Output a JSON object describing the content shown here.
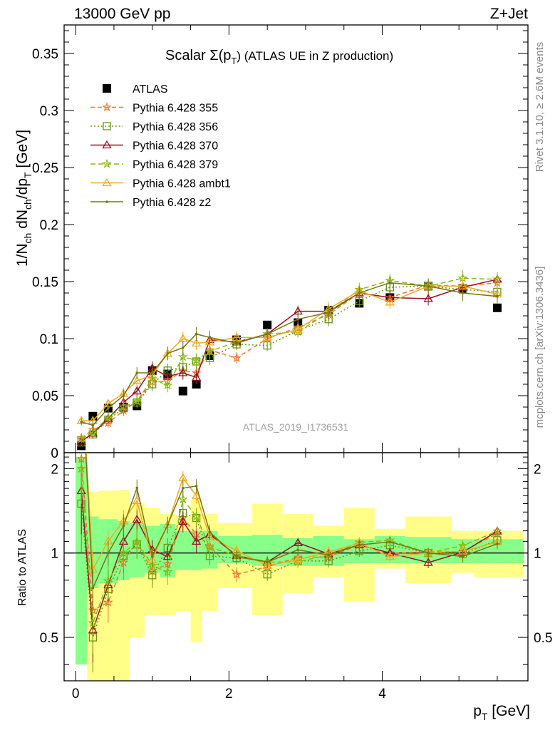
{
  "header": {
    "left": "13000 GeV pp",
    "right": "Z+Jet"
  },
  "side": {
    "rivet": "Rivet 3.1.10, ≥ 2.6M events",
    "mcplots": "mcplots.cern.ch [arXiv:1306.3436]"
  },
  "chart_data": [
    {
      "type": "line",
      "title_main": "Scalar Σ(p",
      "title_sub": "T",
      "title_tail": ") (ATLAS UE in Z production)",
      "ylabel_main": "1/N",
      "ylabel_sub1": "ch",
      "ylabel_mid": " dN",
      "ylabel_sub2": "ch",
      "ylabel_tail": "/dp",
      "ylabel_sub3": "T",
      "ylabel_unit": " [GeV]",
      "watermark": "ATLAS_2019_I1736531",
      "xlim": [
        -0.15,
        5.9
      ],
      "ylim": [
        0,
        0.375
      ],
      "yticks": [
        {
          "v": 0,
          "label": "0"
        },
        {
          "v": 0.05,
          "label": "0.05"
        },
        {
          "v": 0.1,
          "label": "0.1"
        },
        {
          "v": 0.15,
          "label": "0.15"
        },
        {
          "v": 0.2,
          "label": "0.2"
        },
        {
          "v": 0.25,
          "label": "0.25"
        },
        {
          "v": 0.3,
          "label": "0.3"
        },
        {
          "v": 0.35,
          "label": "0.35"
        }
      ],
      "x": [
        0.075,
        0.225,
        0.425,
        0.625,
        0.8,
        1.0,
        1.2,
        1.4,
        1.575,
        1.75,
        2.1,
        2.5,
        2.9,
        3.3,
        3.7,
        4.1,
        4.6,
        5.05,
        5.5
      ],
      "series": [
        {
          "name": "ATLAS",
          "color": "#000000",
          "marker": "square",
          "dash": "none",
          "values": [
            0.006,
            0.032,
            0.039,
            0.04,
            0.041,
            0.072,
            0.069,
            0.054,
            0.06,
            0.085,
            0.099,
            0.112,
            0.114,
            0.125,
            0.131,
            0.136,
            0.146,
            0.144,
            0.127
          ]
        },
        {
          "name": "Pythia 6.428 355",
          "color": "#ee7733",
          "marker": "star",
          "dash": "6,4",
          "values": [
            0.013,
            0.02,
            0.026,
            0.037,
            0.045,
            0.062,
            0.063,
            0.072,
            0.07,
            0.09,
            0.083,
            0.1,
            0.11,
            0.121,
            0.14,
            0.136,
            0.147,
            0.146,
            0.149
          ]
        },
        {
          "name": "Pythia 6.428 356",
          "color": "#669911",
          "marker": "open-square",
          "dash": "2,3",
          "values": [
            0.009,
            0.016,
            0.029,
            0.039,
            0.044,
            0.06,
            0.072,
            0.075,
            0.08,
            0.083,
            0.095,
            0.094,
            0.107,
            0.117,
            0.133,
            0.145,
            0.146,
            0.143,
            0.141
          ]
        },
        {
          "name": "Pythia 6.428 370",
          "color": "#991122",
          "marker": "open-triangle",
          "dash": "none",
          "values": [
            0.01,
            0.017,
            0.03,
            0.044,
            0.054,
            0.074,
            0.067,
            0.07,
            0.066,
            0.099,
            0.097,
            0.104,
            0.124,
            0.124,
            0.14,
            0.136,
            0.135,
            0.145,
            0.152
          ]
        },
        {
          "name": "Pythia 6.428 379",
          "color": "#88bb11",
          "marker": "star",
          "dash": "7,4",
          "values": [
            0.012,
            0.018,
            0.031,
            0.04,
            0.045,
            0.065,
            0.059,
            0.084,
            0.081,
            0.089,
            0.097,
            0.104,
            0.106,
            0.123,
            0.143,
            0.151,
            0.146,
            0.153,
            0.152
          ]
        },
        {
          "name": "Pythia 6.428 ambt1",
          "color": "#eeaa22",
          "marker": "open-triangle",
          "dash": "none",
          "values": [
            0.028,
            0.028,
            0.043,
            0.052,
            0.063,
            0.068,
            0.087,
            0.1,
            0.096,
            0.097,
            0.101,
            0.101,
            0.108,
            0.126,
            0.142,
            0.132,
            0.146,
            0.146,
            0.139
          ]
        },
        {
          "name": "Pythia 6.428 z2",
          "color": "#777711",
          "marker": "dot",
          "dash": "none",
          "values": [
            0.027,
            0.024,
            0.039,
            0.05,
            0.07,
            0.07,
            0.087,
            0.092,
            0.104,
            0.101,
            0.096,
            0.104,
            0.117,
            0.123,
            0.14,
            0.149,
            0.146,
            0.14,
            0.137
          ]
        }
      ],
      "errors": [
        0.003,
        0.004,
        0.004,
        0.005,
        0.005,
        0.006,
        0.006,
        0.006,
        0.006,
        0.006,
        0.005,
        0.005,
        0.005,
        0.006,
        0.006,
        0.006,
        0.006,
        0.007,
        0.006
      ]
    },
    {
      "type": "line",
      "ylabel": "Ratio to ATLAS",
      "xlabel_main": "p",
      "xlabel_sub": "T",
      "xlabel_unit": " [GeV]",
      "ylim": [
        0.35,
        2.28
      ],
      "yticks": [
        {
          "v": 0.5,
          "label": "0.5"
        },
        {
          "v": 1,
          "label": "1"
        },
        {
          "v": 2,
          "label": "2"
        }
      ],
      "xticks": [
        {
          "v": 0,
          "label": "0"
        },
        {
          "v": 2,
          "label": "2"
        },
        {
          "v": 4,
          "label": "4"
        }
      ],
      "bin_edges": [
        0.0,
        0.15,
        0.3,
        0.55,
        0.7,
        0.9,
        1.1,
        1.3,
        1.5,
        1.65,
        1.85,
        2.3,
        2.7,
        3.1,
        3.5,
        3.9,
        4.3,
        4.9,
        5.2,
        5.85
      ],
      "band_inner": [
        [
          0.4,
          2.2
        ],
        [
          0.75,
          1.35
        ],
        [
          0.78,
          1.32
        ],
        [
          0.8,
          1.3
        ],
        [
          0.82,
          1.28
        ],
        [
          0.85,
          1.25
        ],
        [
          0.82,
          1.27
        ],
        [
          0.87,
          1.2
        ],
        [
          0.87,
          1.2
        ],
        [
          0.88,
          1.2
        ],
        [
          0.92,
          1.15
        ],
        [
          0.9,
          1.16
        ],
        [
          0.9,
          1.13
        ],
        [
          0.9,
          1.15
        ],
        [
          0.92,
          1.12
        ],
        [
          0.92,
          1.15
        ],
        [
          0.92,
          1.14
        ],
        [
          0.92,
          1.12
        ],
        [
          0.92,
          1.12
        ]
      ],
      "band_outer": [
        [
          0.4,
          2.2
        ],
        [
          0.35,
          1.65
        ],
        [
          0.35,
          1.67
        ],
        [
          0.35,
          1.68
        ],
        [
          0.5,
          1.5
        ],
        [
          0.6,
          1.45
        ],
        [
          0.6,
          1.38
        ],
        [
          0.62,
          1.36
        ],
        [
          0.48,
          1.55
        ],
        [
          0.62,
          1.38
        ],
        [
          0.75,
          1.28
        ],
        [
          0.6,
          1.5
        ],
        [
          0.72,
          1.38
        ],
        [
          0.82,
          1.25
        ],
        [
          0.67,
          1.45
        ],
        [
          0.88,
          1.22
        ],
        [
          0.78,
          1.35
        ],
        [
          0.85,
          1.2
        ],
        [
          0.82,
          1.2
        ]
      ]
    }
  ]
}
